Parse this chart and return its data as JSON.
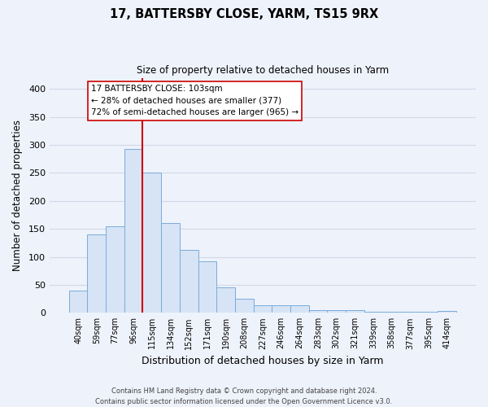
{
  "title": "17, BATTERSBY CLOSE, YARM, TS15 9RX",
  "subtitle": "Size of property relative to detached houses in Yarm",
  "xlabel": "Distribution of detached houses by size in Yarm",
  "ylabel": "Number of detached properties",
  "bar_labels": [
    "40sqm",
    "59sqm",
    "77sqm",
    "96sqm",
    "115sqm",
    "134sqm",
    "152sqm",
    "171sqm",
    "190sqm",
    "208sqm",
    "227sqm",
    "246sqm",
    "264sqm",
    "283sqm",
    "302sqm",
    "321sqm",
    "339sqm",
    "358sqm",
    "377sqm",
    "395sqm",
    "414sqm"
  ],
  "bar_values": [
    40,
    140,
    155,
    293,
    250,
    160,
    113,
    92,
    46,
    25,
    13,
    13,
    13,
    5,
    5,
    5,
    2,
    2,
    2,
    2,
    4
  ],
  "bar_color": "#d6e4f5",
  "bar_edge_color": "#7aacdb",
  "vline_color": "#cc0000",
  "vline_pos": 3.5,
  "annotation_title": "17 BATTERSBY CLOSE: 103sqm",
  "annotation_line1": "← 28% of detached houses are smaller (377)",
  "annotation_line2": "72% of semi-detached houses are larger (965) →",
  "annotation_box_facecolor": "#ffffff",
  "annotation_box_edgecolor": "#cc0000",
  "ylim": [
    0,
    420
  ],
  "yticks": [
    0,
    50,
    100,
    150,
    200,
    250,
    300,
    350,
    400
  ],
  "grid_color": "#d0d8e8",
  "footer_line1": "Contains HM Land Registry data © Crown copyright and database right 2024.",
  "footer_line2": "Contains public sector information licensed under the Open Government Licence v3.0.",
  "bg_color": "#eef2fb",
  "plot_bg_color": "#eef2fb"
}
